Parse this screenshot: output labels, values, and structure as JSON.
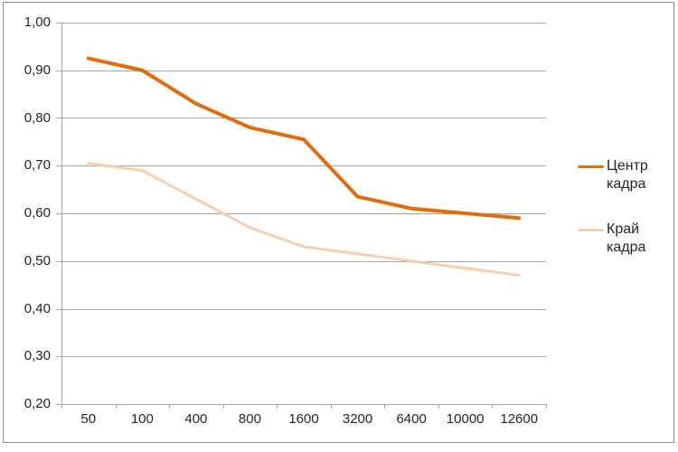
{
  "chart_data": {
    "type": "line",
    "title": "",
    "xlabel": "",
    "ylabel": "",
    "categories": [
      "50",
      "100",
      "400",
      "800",
      "1600",
      "3200",
      "6400",
      "10000",
      "12600"
    ],
    "series": [
      {
        "name": "Центр кадра",
        "color": "#E36C0A",
        "line_width": 4,
        "values": [
          0.925,
          0.9,
          0.83,
          0.78,
          0.755,
          0.635,
          0.61,
          0.6,
          0.59
        ]
      },
      {
        "name": "Край кадра",
        "color": "#F8CFAD",
        "line_width": 3,
        "values": [
          0.705,
          0.69,
          0.63,
          0.57,
          0.53,
          0.515,
          0.5,
          0.485,
          0.47
        ]
      }
    ],
    "ylim": [
      0.2,
      1.0
    ],
    "ytick_values": [
      1.0,
      0.9,
      0.8,
      0.7,
      0.6,
      0.5,
      0.4,
      0.3,
      0.2
    ],
    "ytick_labels": [
      "1,00",
      "0,90",
      "0,80",
      "0,70",
      "0,60",
      "0,50",
      "0,40",
      "0,30",
      "0,20"
    ],
    "grid": true,
    "legend_position": "right",
    "colors": {
      "grid": "#A6A6A6",
      "axis": "#A6A6A6",
      "text": "#262626",
      "frame_border": "#8C8C8C",
      "background": "#FFFFFF"
    }
  }
}
